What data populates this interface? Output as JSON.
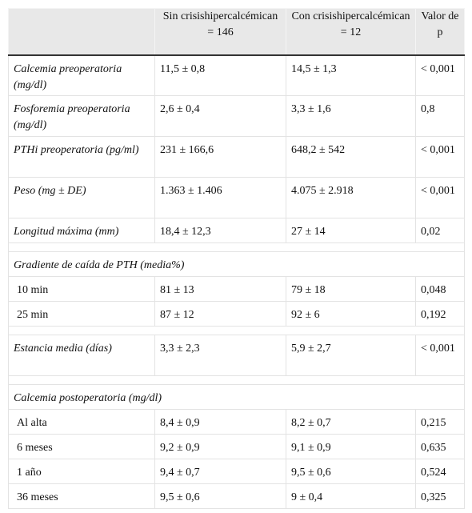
{
  "table": {
    "header": [
      "Sin crisishipercalcémican = 146",
      "Con crisishipercalcémican = 12",
      "Valor de p"
    ],
    "groups": [
      {
        "rows": [
          [
            "Calcemia preoperatoria (mg/dl)",
            "11,5 ± 0,8",
            "14,5 ± 1,3",
            "< 0,001"
          ],
          [
            "Fosforemia preoperatoria (mg/dl)",
            "2,6 ± 0,4",
            "3,3 ± 1,6",
            "0,8"
          ],
          [
            "PTHi preoperatoria (pg/ml)",
            "231 ± 166,6",
            "648,2 ± 542",
            "< 0,001"
          ],
          [
            "Peso (mg ± DE)",
            "1.363 ± 1.406",
            "4.075 ± 2.918",
            "< 0,001"
          ],
          [
            "Longitud máxima (mm)",
            "18,4 ± 12,3",
            "27 ± 14",
            "0,02"
          ]
        ]
      },
      {
        "title": "Gradiente de caída de PTH (media%)",
        "rows": [
          [
            "10 min",
            "81 ± 13",
            "79 ± 18",
            "0,048"
          ],
          [
            "25 min",
            "87 ± 12",
            "92 ± 6",
            "0,192"
          ]
        ]
      },
      {
        "rows": [
          [
            "Estancia media (días)",
            "3,3 ± 2,3",
            "5,9 ± 2,7",
            "< 0,001"
          ]
        ]
      },
      {
        "title": "Calcemia postoperatoria (mg/dl)",
        "rows": [
          [
            "Al alta",
            "8,4 ± 0,9",
            "8,2 ± 0,7",
            "0,215"
          ],
          [
            "6 meses",
            "9,2 ± 0,9",
            "9,1 ± 0,9",
            "0,635"
          ],
          [
            "1 año",
            "9,4 ± 0,7",
            "9,5 ± 0,6",
            "0,524"
          ],
          [
            "36 meses",
            "9,5 ± 0,6",
            "9 ± 0,4",
            "0,325"
          ]
        ]
      }
    ]
  }
}
